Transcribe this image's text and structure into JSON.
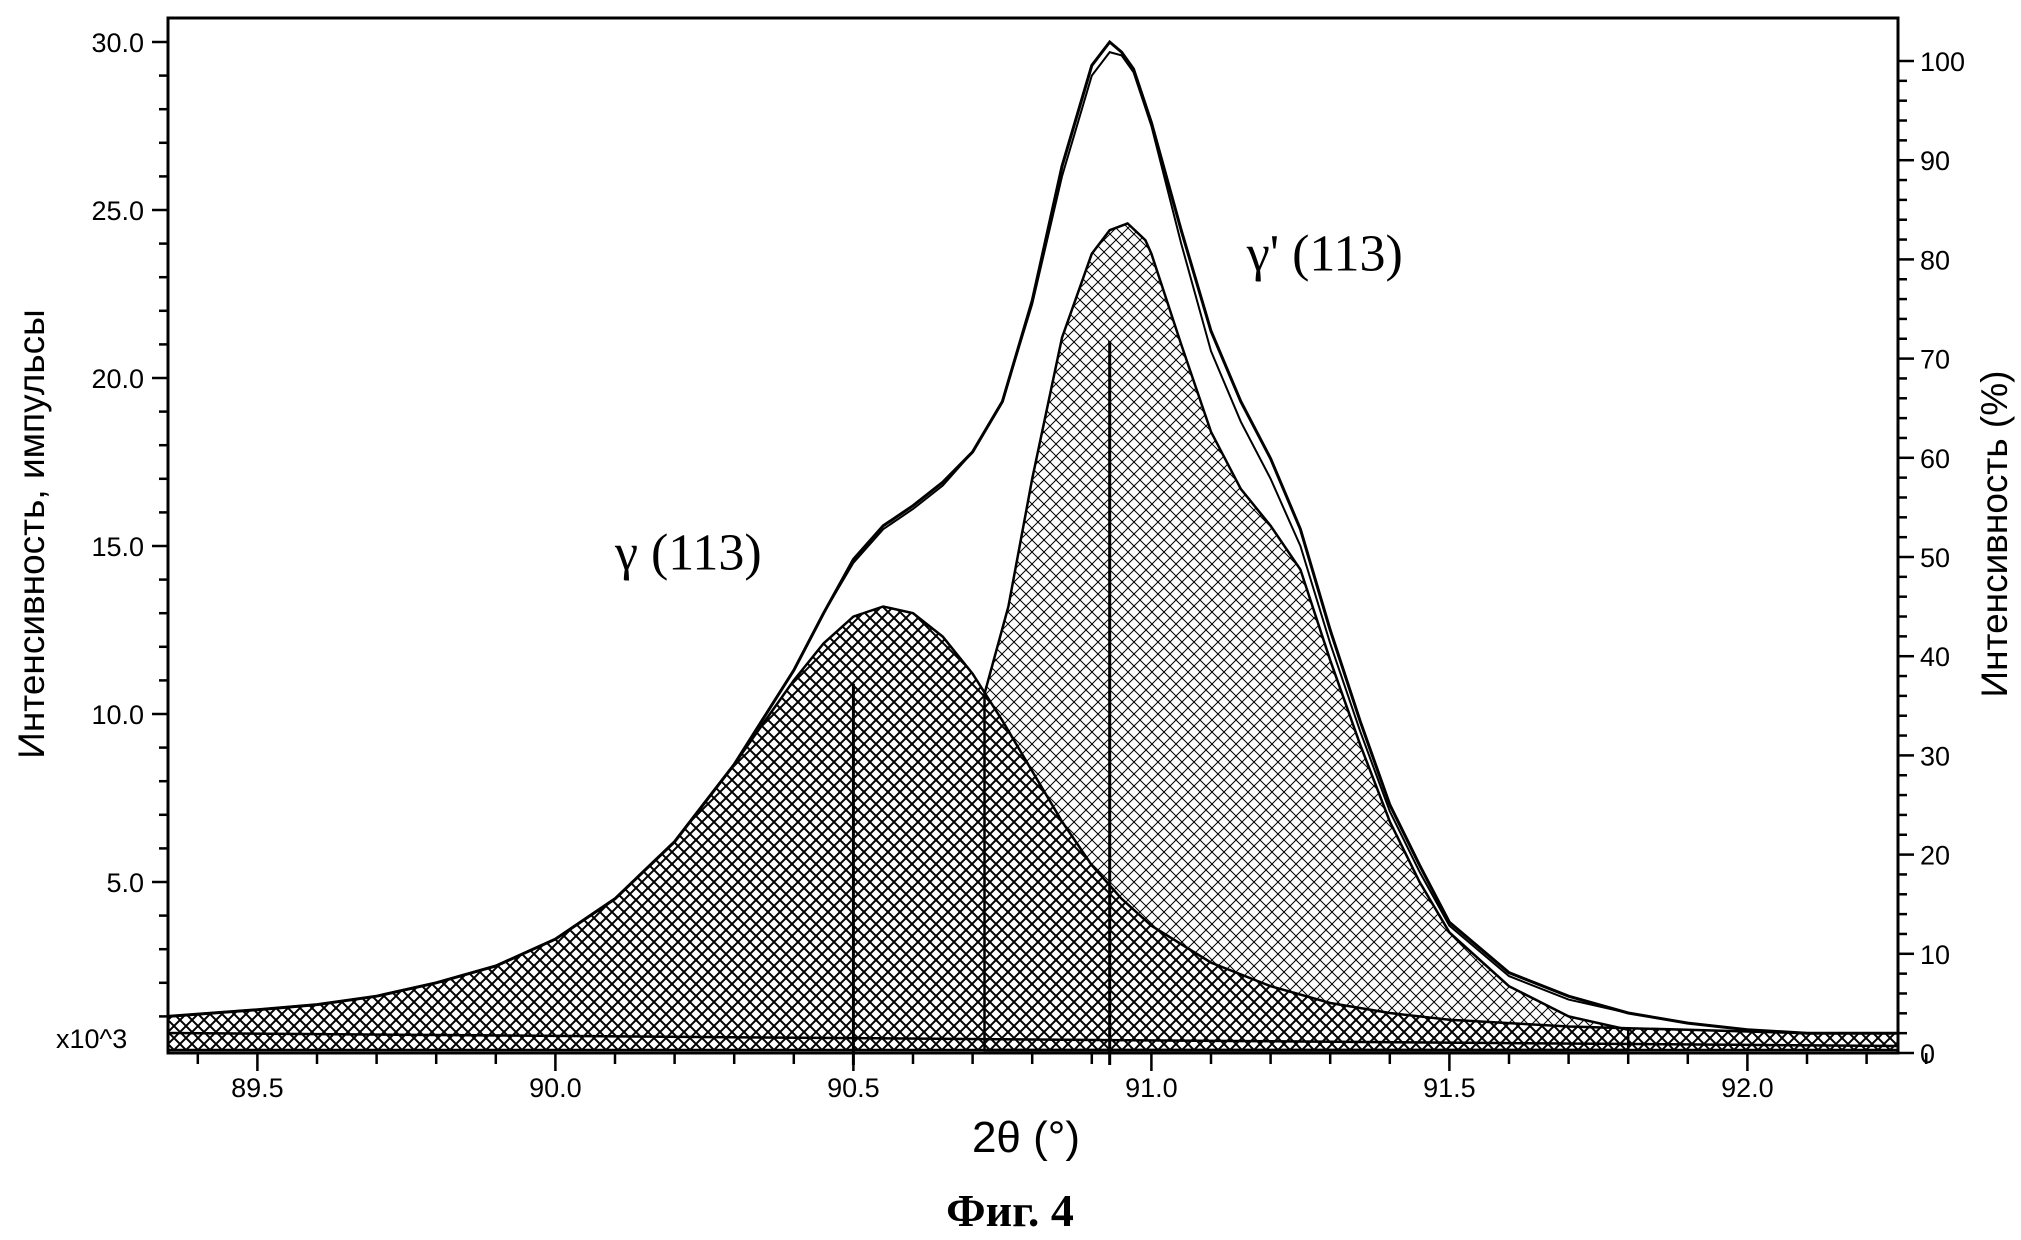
{
  "chart_data": {
    "type": "line",
    "caption": "Фиг. 4",
    "xlabel": "2θ (°)",
    "ylabel_left": "Интенсивность,  импульсы",
    "ylabel_right": "Интенсивность  (%)",
    "left_axis_multiplier": "x10^3",
    "xlim": [
      89.35,
      92.27
    ],
    "ylim_left": [
      0,
      30.8
    ],
    "ylim_right": [
      0,
      103.5
    ],
    "x_ticks": [
      "89.5",
      "90.0",
      "90.5",
      "91.0",
      "91.5",
      "92.0"
    ],
    "y_ticks_left": [
      "5.0",
      "10.0",
      "15.0",
      "20.0",
      "25.0",
      "30.0"
    ],
    "y_ticks_right": [
      "0",
      "10",
      "20",
      "30",
      "40",
      "50",
      "60",
      "70",
      "80",
      "90",
      "100"
    ],
    "annotations": [
      {
        "text": "γ (113)",
        "x": 90.1,
        "y": 14.3,
        "peak_position": 90.5,
        "marker_height": 10.9
      },
      {
        "text": "γ' (113)",
        "x": 91.16,
        "y": 23.2,
        "peak_position": 90.93,
        "marker_height": 21.1
      }
    ],
    "grid": false,
    "legend": "none",
    "series": [
      {
        "role": "measured",
        "x": [
          89.35,
          89.5,
          89.6,
          89.7,
          89.8,
          89.9,
          90.0,
          90.1,
          90.2,
          90.3,
          90.4,
          90.45,
          90.5,
          90.55,
          90.6,
          90.65,
          90.7,
          90.75,
          90.8,
          90.85,
          90.9,
          90.93,
          90.95,
          90.97,
          91.0,
          91.05,
          91.1,
          91.15,
          91.2,
          91.25,
          91.3,
          91.35,
          91.4,
          91.45,
          91.5,
          91.6,
          91.7,
          91.8,
          91.9,
          92.0,
          92.1,
          92.27
        ],
        "y": [
          1.0,
          1.2,
          1.35,
          1.6,
          2.0,
          2.5,
          3.3,
          4.5,
          6.2,
          8.5,
          11.3,
          13.0,
          14.6,
          15.6,
          16.2,
          16.9,
          17.8,
          19.3,
          22.3,
          26.3,
          29.3,
          30.0,
          29.7,
          29.2,
          27.6,
          24.4,
          21.4,
          19.3,
          17.6,
          15.5,
          12.5,
          9.8,
          7.3,
          5.5,
          3.8,
          2.3,
          1.6,
          1.1,
          0.8,
          0.6,
          0.5,
          0.5
        ]
      },
      {
        "role": "fit-envelope",
        "x": [
          89.35,
          89.5,
          89.6,
          89.7,
          89.8,
          89.9,
          90.0,
          90.1,
          90.2,
          90.3,
          90.4,
          90.45,
          90.5,
          90.55,
          90.6,
          90.65,
          90.7,
          90.75,
          90.8,
          90.85,
          90.9,
          90.93,
          90.95,
          90.97,
          91.0,
          91.05,
          91.1,
          91.15,
          91.2,
          91.25,
          91.3,
          91.35,
          91.4,
          91.45,
          91.5,
          91.6,
          91.7,
          91.8,
          91.9,
          92.0,
          92.1,
          92.27
        ],
        "y": [
          1.0,
          1.2,
          1.35,
          1.6,
          2.0,
          2.5,
          3.3,
          4.5,
          6.2,
          8.5,
          11.3,
          13.0,
          14.5,
          15.5,
          16.1,
          16.8,
          17.8,
          19.3,
          22.2,
          26.0,
          29.0,
          29.7,
          29.6,
          29.1,
          27.5,
          24.0,
          20.8,
          18.7,
          17.0,
          15.0,
          12.1,
          9.5,
          7.1,
          5.3,
          3.7,
          2.2,
          1.5,
          1.1,
          0.8,
          0.6,
          0.5,
          0.5
        ]
      },
      {
        "role": "gamma-113-component",
        "x": [
          89.35,
          89.5,
          89.6,
          89.7,
          89.8,
          89.9,
          90.0,
          90.1,
          90.2,
          90.3,
          90.4,
          90.45,
          90.5,
          90.55,
          90.6,
          90.65,
          90.7,
          90.75,
          90.8,
          90.85,
          90.9,
          90.95,
          91.0,
          91.1,
          91.2,
          91.3,
          91.4,
          91.5,
          91.6,
          91.7,
          91.8,
          91.9,
          92.0,
          92.1,
          92.27
        ],
        "y": [
          1.0,
          1.2,
          1.35,
          1.6,
          2.0,
          2.5,
          3.3,
          4.5,
          6.2,
          8.5,
          11.0,
          12.1,
          12.9,
          13.2,
          13.0,
          12.3,
          11.2,
          9.8,
          8.3,
          6.8,
          5.5,
          4.5,
          3.7,
          2.6,
          1.9,
          1.4,
          1.1,
          0.9,
          0.8,
          0.7,
          0.65,
          0.6,
          0.55,
          0.5,
          0.5
        ]
      },
      {
        "role": "gamma-prime-113-component",
        "x": [
          90.72,
          90.76,
          90.8,
          90.85,
          90.9,
          90.93,
          90.96,
          90.99,
          91.0,
          91.05,
          91.1,
          91.15,
          91.2,
          91.25,
          91.3,
          91.35,
          91.4,
          91.45,
          91.5,
          91.6,
          91.7,
          91.8
        ],
        "y": [
          10.6,
          13.2,
          17.0,
          21.2,
          23.7,
          24.4,
          24.6,
          24.1,
          23.7,
          21.0,
          18.4,
          16.7,
          15.6,
          14.3,
          11.6,
          9.1,
          6.8,
          5.0,
          3.5,
          1.9,
          1.0,
          0.6
        ]
      }
    ]
  }
}
